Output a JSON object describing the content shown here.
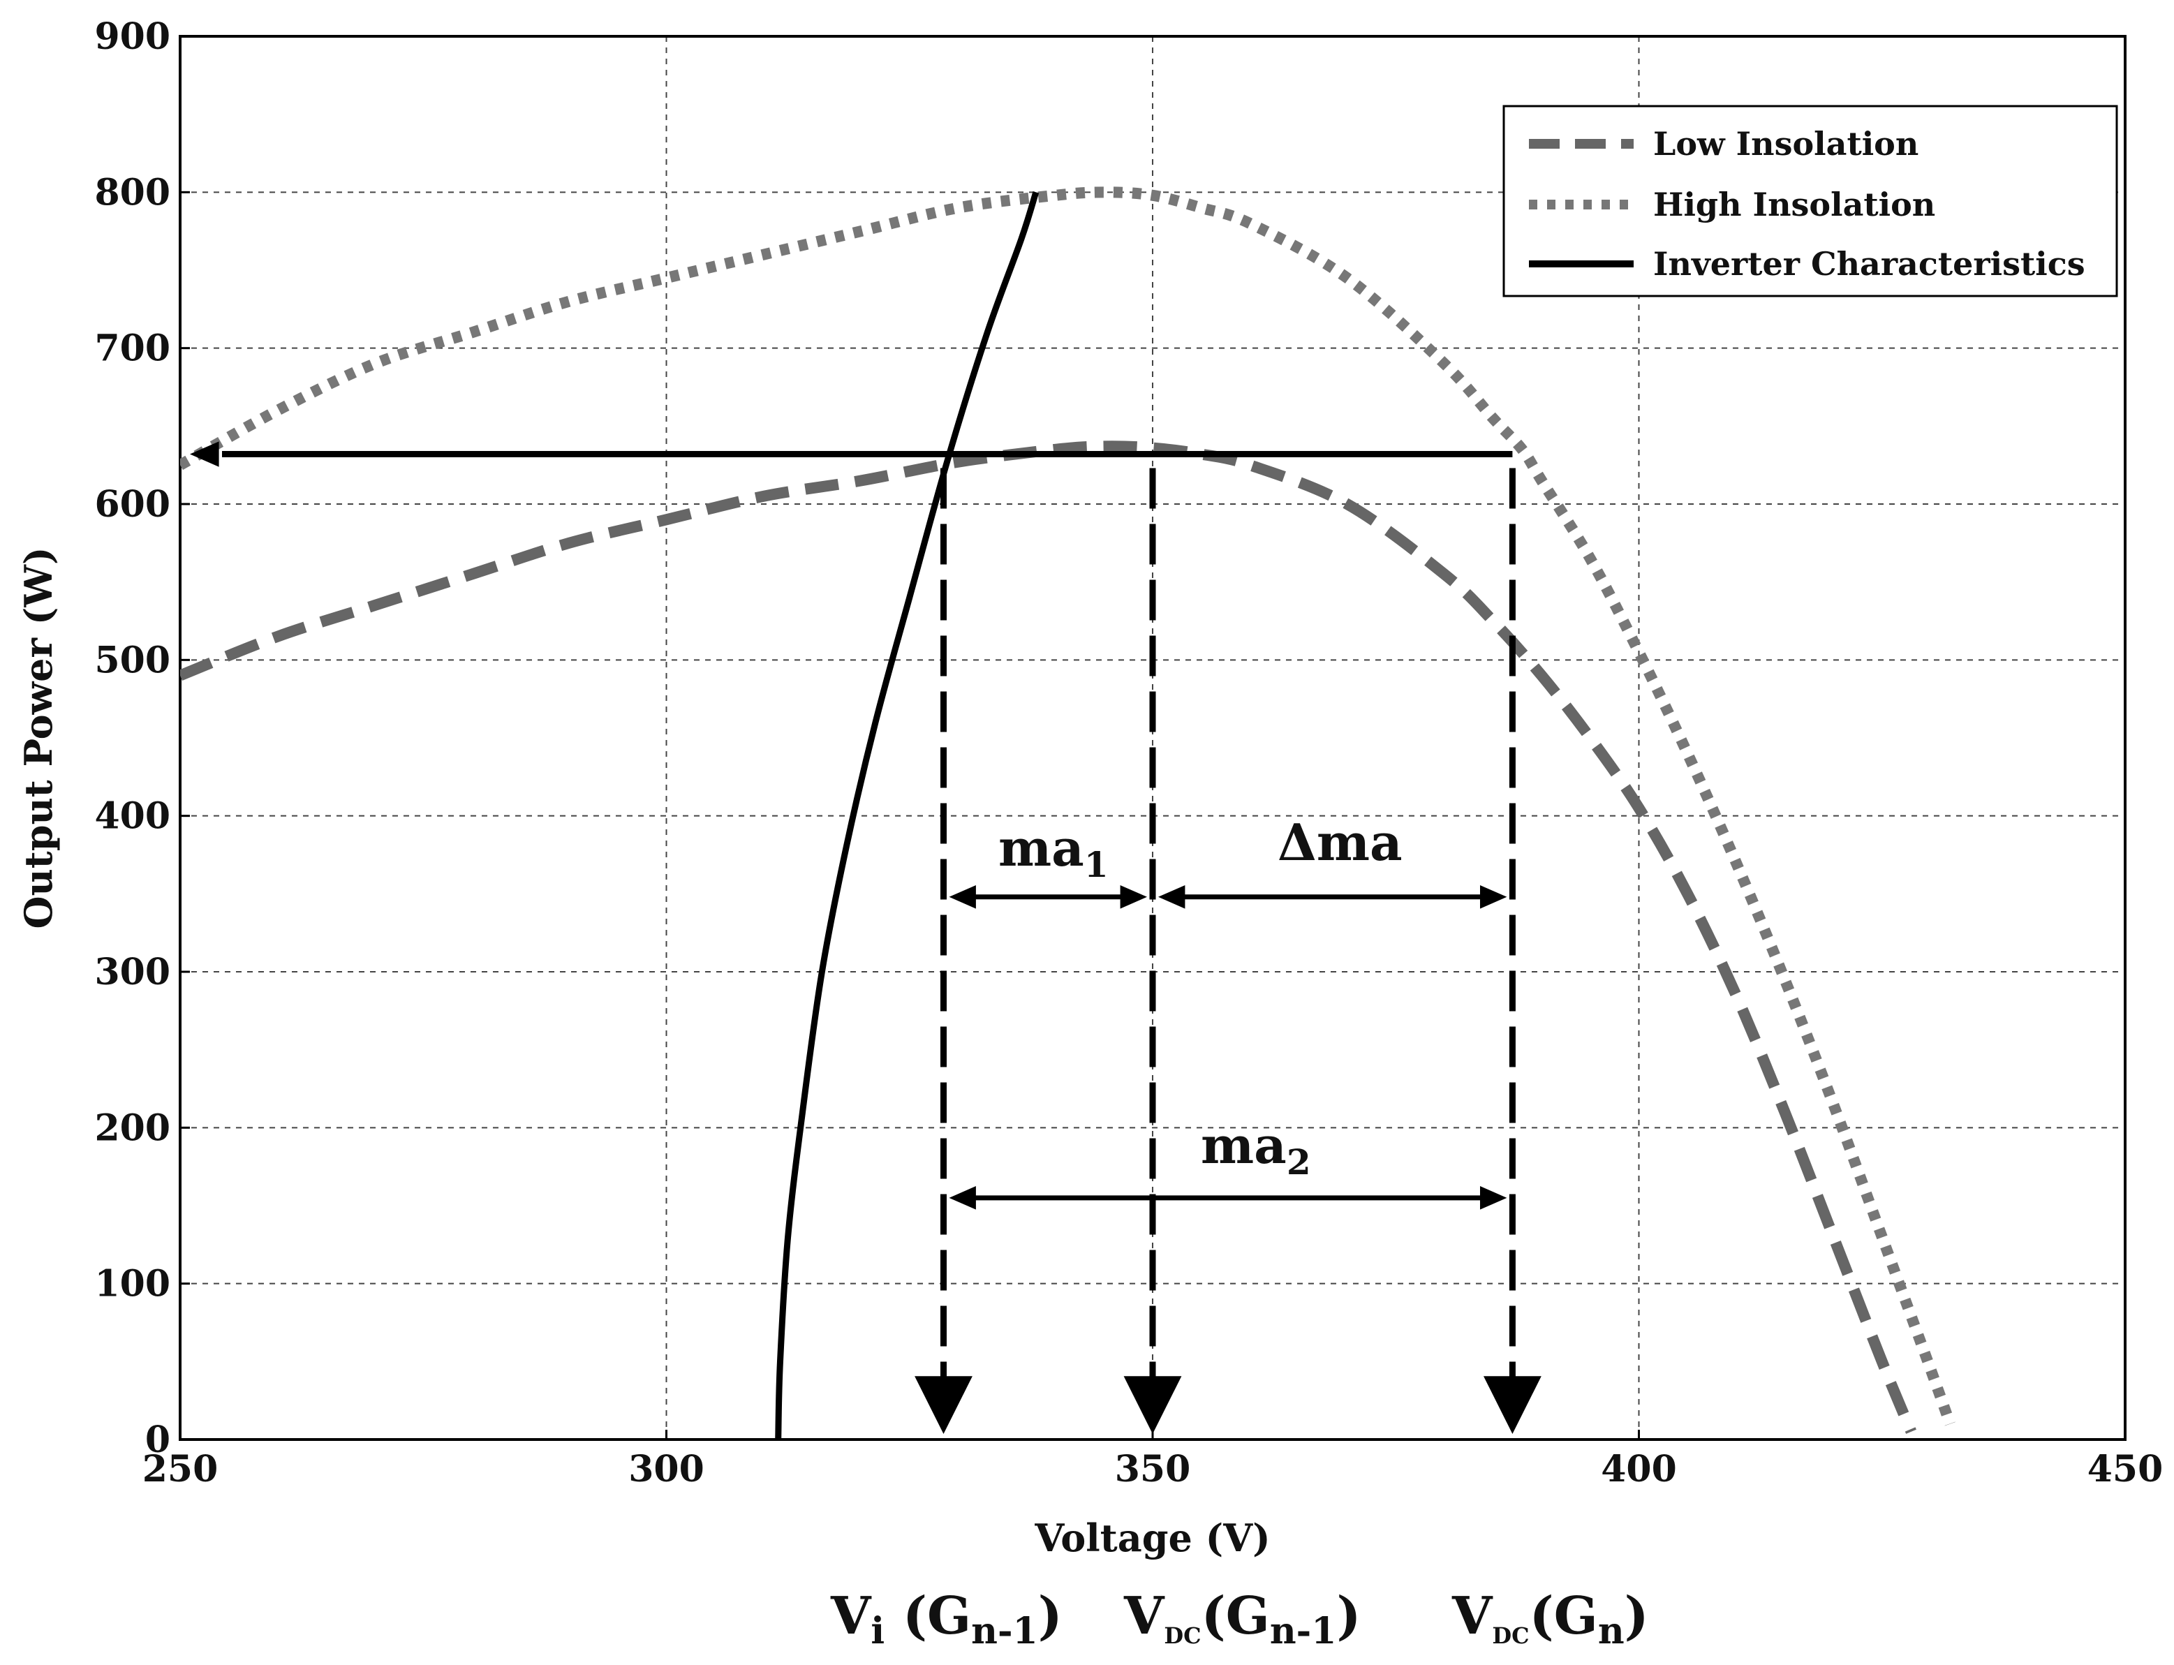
{
  "chart_data": {
    "type": "line",
    "title": "",
    "xlabel": "Voltage (V)",
    "ylabel": "Output Power (W)",
    "xlim": [
      250,
      450
    ],
    "ylim": [
      0,
      900
    ],
    "x_ticks": [
      250,
      300,
      350,
      400,
      450
    ],
    "y_ticks": [
      0,
      100,
      200,
      300,
      400,
      500,
      600,
      700,
      800,
      900
    ],
    "grid": true,
    "legend_position": "top-right",
    "series": [
      {
        "name": "Low Insolation",
        "style": "dashed",
        "color": "#666666",
        "x": [
          250,
          260,
          270,
          280,
          290,
          300,
          310,
          320,
          330,
          340,
          345,
          350,
          355,
          360,
          370,
          380,
          385,
          390,
          395,
          400,
          405,
          410,
          415,
          420,
          425,
          428
        ],
        "y": [
          490,
          515,
          535,
          555,
          575,
          590,
          605,
          615,
          627,
          635,
          637,
          636,
          632,
          625,
          600,
          555,
          525,
          490,
          450,
          405,
          350,
          285,
          210,
          130,
          50,
          5
        ]
      },
      {
        "name": "High Insolation",
        "style": "dotted",
        "color": "#777777",
        "x": [
          250,
          260,
          270,
          280,
          290,
          300,
          310,
          320,
          330,
          340,
          345,
          350,
          355,
          360,
          370,
          380,
          385,
          388,
          390,
          395,
          400,
          405,
          410,
          415,
          420,
          425,
          430,
          432
        ],
        "y": [
          625,
          660,
          690,
          710,
          730,
          745,
          760,
          775,
          790,
          798,
          800,
          798,
          790,
          780,
          745,
          690,
          655,
          635,
          615,
          565,
          505,
          440,
          370,
          295,
          215,
          130,
          45,
          10
        ]
      },
      {
        "name": "Inverter Characteristics",
        "style": "solid",
        "color": "#000000",
        "x": [
          311.5,
          311.7,
          312.5,
          314,
          316,
          318.5,
          321.5,
          325,
          329,
          333,
          336.5,
          338
        ],
        "y": [
          0,
          50,
          130,
          210,
          300,
          380,
          460,
          540,
          630,
          710,
          770,
          800
        ]
      }
    ],
    "annotations": {
      "ma1": "ma",
      "ma1_sub": "1",
      "delta_ma": "Δma",
      "ma2": "ma",
      "ma2_sub": "2",
      "v1_main": "V",
      "v1_sub": "i",
      "v1_paren_open": " (G",
      "v1_paren_sub": "n-1",
      "v1_paren_close": ")",
      "v2_main": "V",
      "v2_sub": "DC",
      "v2_paren_open": "(G",
      "v2_paren_sub": "n-1",
      "v2_paren_close": ")",
      "v3_main": "V",
      "v3_sub": "DC",
      "v3_paren_open": "(G",
      "v3_paren_sub": "n",
      "v3_paren_close": ")",
      "vertical_markers_x": [
        328.5,
        350,
        387
      ],
      "horizontal_arrow_y": 632,
      "horizontal_arrow_from_x": 387,
      "horizontal_arrow_to_x": 250,
      "ma1_arrow_y": 348,
      "delta_ma_arrow_y": 348,
      "ma2_arrow_y": 155
    }
  }
}
